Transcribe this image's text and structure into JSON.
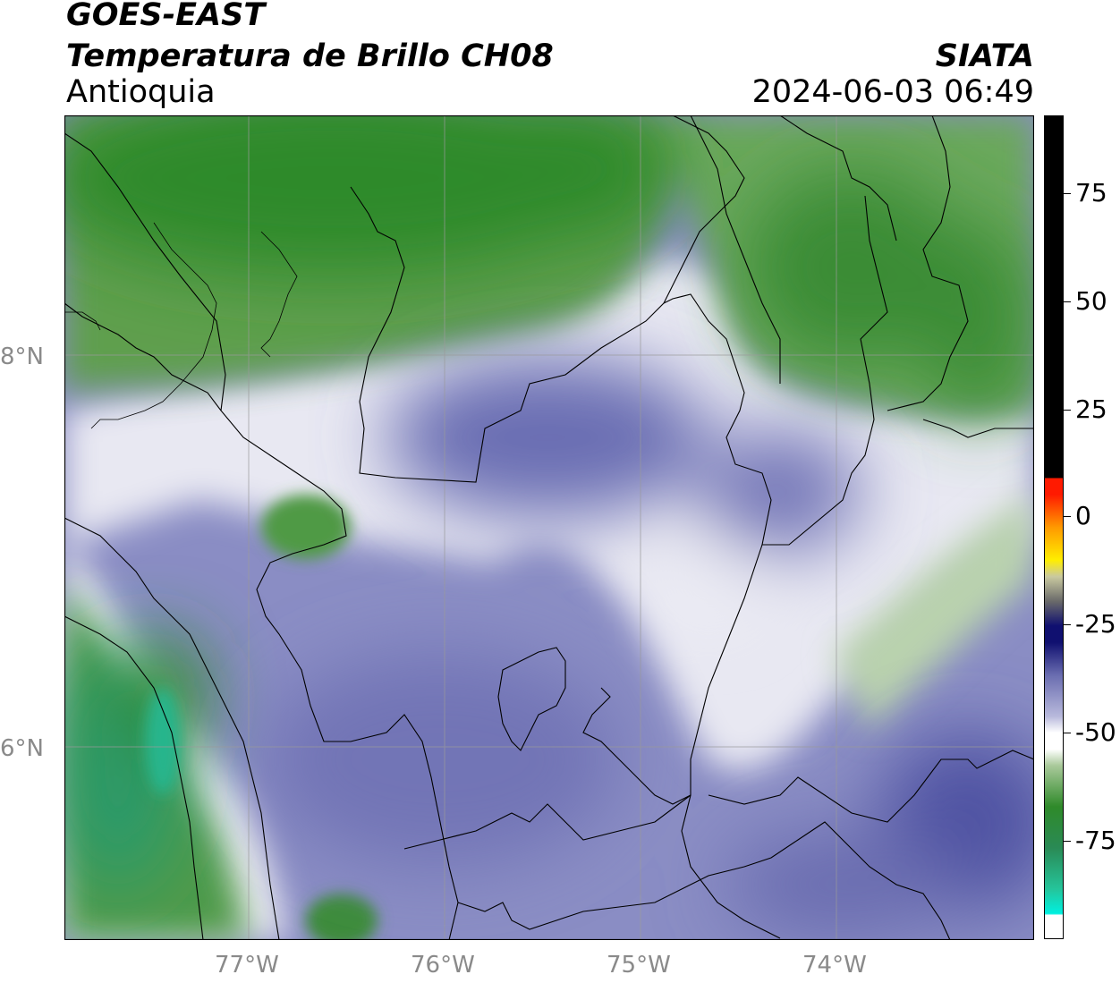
{
  "header": {
    "satellite": "GOES-EAST",
    "product": "Temperatura de Brillo CH08",
    "region": "Antioquia",
    "organization": "SIATA",
    "timestamp": "2024-06-03 06:49"
  },
  "map": {
    "lon_labels": [
      "77°W",
      "76°W",
      "75°W",
      "74°W"
    ],
    "lat_labels": [
      "8°N",
      "6°N"
    ]
  },
  "colorbar": {
    "tick_labels": [
      "75",
      "50",
      "25",
      "0",
      "-25",
      "-50",
      "-75"
    ],
    "colors": {
      "black": "#000000",
      "red": "#ff1a00",
      "orange": "#ff9900",
      "yellow": "#ffee00",
      "navy": "#101070",
      "lavender": "#6a6db0",
      "white": "#ffffff",
      "green": "#2f8a2a",
      "teal": "#25c49a",
      "cyan": "#00f0e0"
    }
  }
}
